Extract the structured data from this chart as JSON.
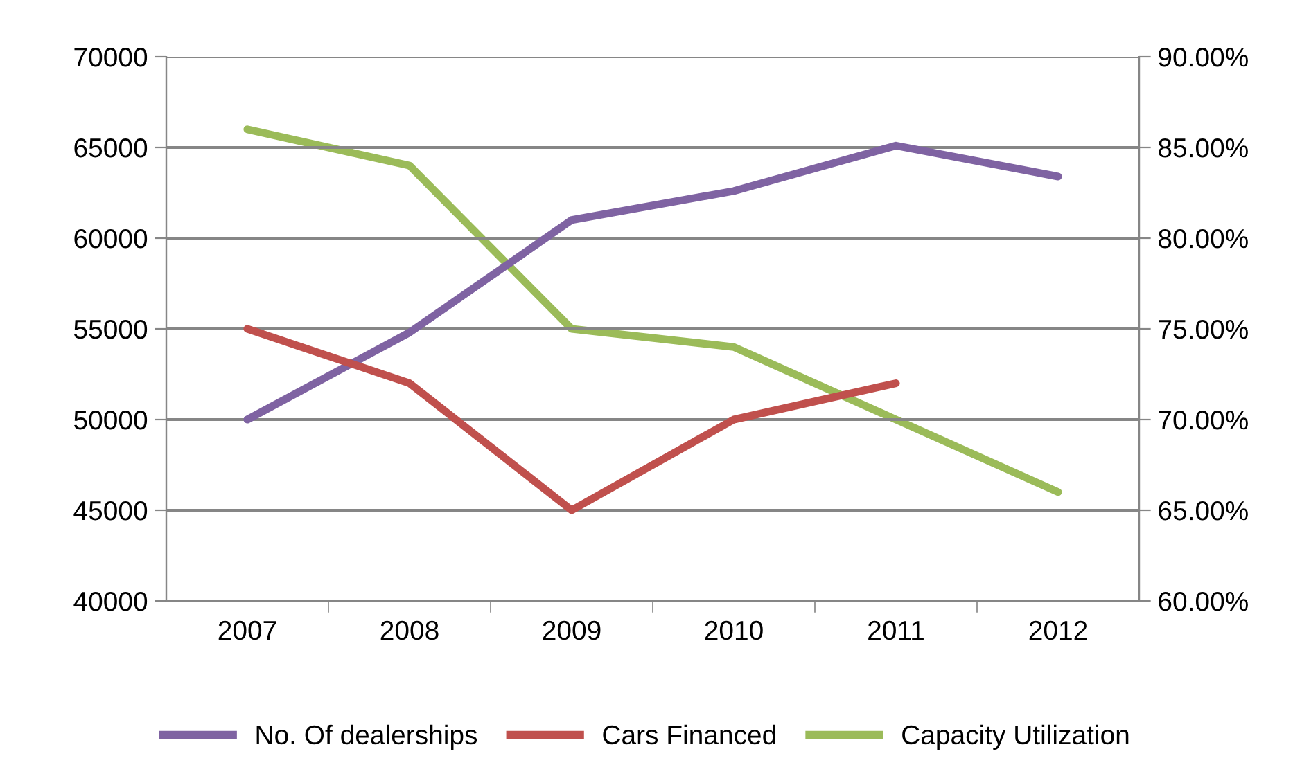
{
  "chart_data": {
    "type": "line",
    "categories": [
      "2007",
      "2008",
      "2009",
      "2010",
      "2011",
      "2012"
    ],
    "series": [
      {
        "name": "No. Of dealerships",
        "color": "#7f63a2",
        "values": [
          50000,
          54800,
          61000,
          62600,
          65100,
          63400
        ]
      },
      {
        "name": "Cars Financed",
        "color": "#c0504d",
        "values": [
          55000,
          52000,
          45000,
          50000,
          52000,
          null
        ]
      },
      {
        "name": "Capacity Utilization",
        "color": "#9bbb59",
        "axis": "y2",
        "values": [
          86,
          84,
          75,
          74,
          70,
          66
        ]
      }
    ],
    "ylim": [
      40000,
      70000
    ],
    "yticks": [
      40000,
      45000,
      50000,
      55000,
      60000,
      65000,
      70000
    ],
    "y2lim": [
      60,
      90
    ],
    "y2ticks": [
      {
        "value": 60,
        "label": "60.00%"
      },
      {
        "value": 65,
        "label": "65.00%"
      },
      {
        "value": 70,
        "label": "70.00%"
      },
      {
        "value": 75,
        "label": "75.00%"
      },
      {
        "value": 80,
        "label": "80.00%"
      },
      {
        "value": 85,
        "label": "85.00%"
      },
      {
        "value": 90,
        "label": "90.00%"
      }
    ],
    "grid": "y",
    "legend": "bottom",
    "marker": "none",
    "line_style": "solid"
  }
}
